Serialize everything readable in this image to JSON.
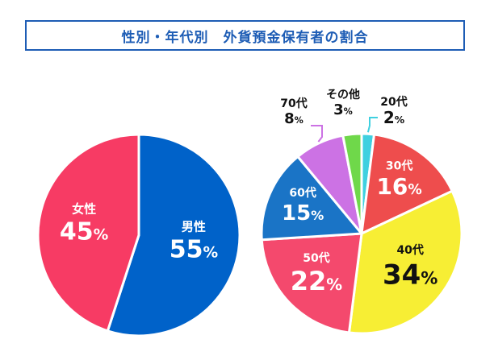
{
  "title": "性別・年代別　外貨預金保有者の割合",
  "chart_data": [
    {
      "type": "pie",
      "name": "gender",
      "slices": [
        {
          "label": "男性",
          "value": 55,
          "color": "#0062c9"
        },
        {
          "label": "女性",
          "value": 45,
          "color": "#f73b64"
        }
      ]
    },
    {
      "type": "pie",
      "name": "age",
      "slices": [
        {
          "label": "20代",
          "value": 2,
          "color": "#3fd0e0"
        },
        {
          "label": "30代",
          "value": 16,
          "color": "#ee4d4d"
        },
        {
          "label": "40代",
          "value": 34,
          "color": "#f7ee34"
        },
        {
          "label": "50代",
          "value": 22,
          "color": "#f4496d"
        },
        {
          "label": "60代",
          "value": 15,
          "color": "#1a74c6"
        },
        {
          "label": "70代",
          "value": 8,
          "color": "#cc72e4"
        },
        {
          "label": "その他",
          "value": 3,
          "color": "#6fd84a"
        }
      ]
    }
  ]
}
